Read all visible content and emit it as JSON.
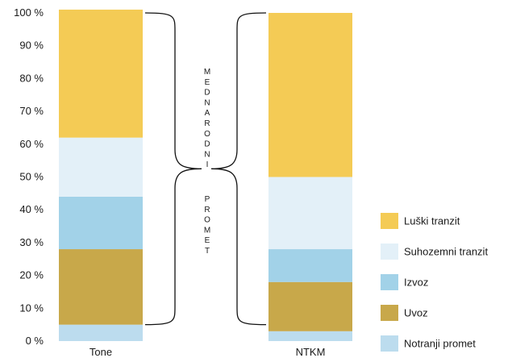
{
  "chart_data": {
    "type": "bar",
    "stacked": true,
    "title": "",
    "xlabel": "",
    "ylabel": "",
    "ylim": [
      0,
      100
    ],
    "y_ticks": [
      "0 %",
      "10 %",
      "20 %",
      "30 %",
      "40 %",
      "50 %",
      "60 %",
      "70 %",
      "80 %",
      "90 %",
      "100 %"
    ],
    "categories": [
      "Tone",
      "NTKM"
    ],
    "series": [
      {
        "name": "Notranji promet",
        "color": "#bcdcee",
        "values": [
          5,
          3
        ]
      },
      {
        "name": "Uvoz",
        "color": "#c8a84a",
        "values": [
          23,
          15
        ]
      },
      {
        "name": "Izvoz",
        "color": "#a2d2e8",
        "values": [
          16,
          10
        ]
      },
      {
        "name": "Suhozemni tranzit",
        "color": "#e3f0f8",
        "values": [
          18,
          22
        ]
      },
      {
        "name": "Luški tranzit",
        "color": "#f4cb55",
        "values": [
          39,
          50
        ]
      }
    ],
    "legend_order": [
      "Luški tranzit",
      "Suhozemni tranzit",
      "Izvoz",
      "Uvoz",
      "Notranji promet"
    ],
    "legend_position": "right",
    "grid": false,
    "annotation": {
      "words": [
        "MEDNARODNI",
        "PROMET"
      ],
      "range": [
        5,
        100
      ]
    }
  }
}
